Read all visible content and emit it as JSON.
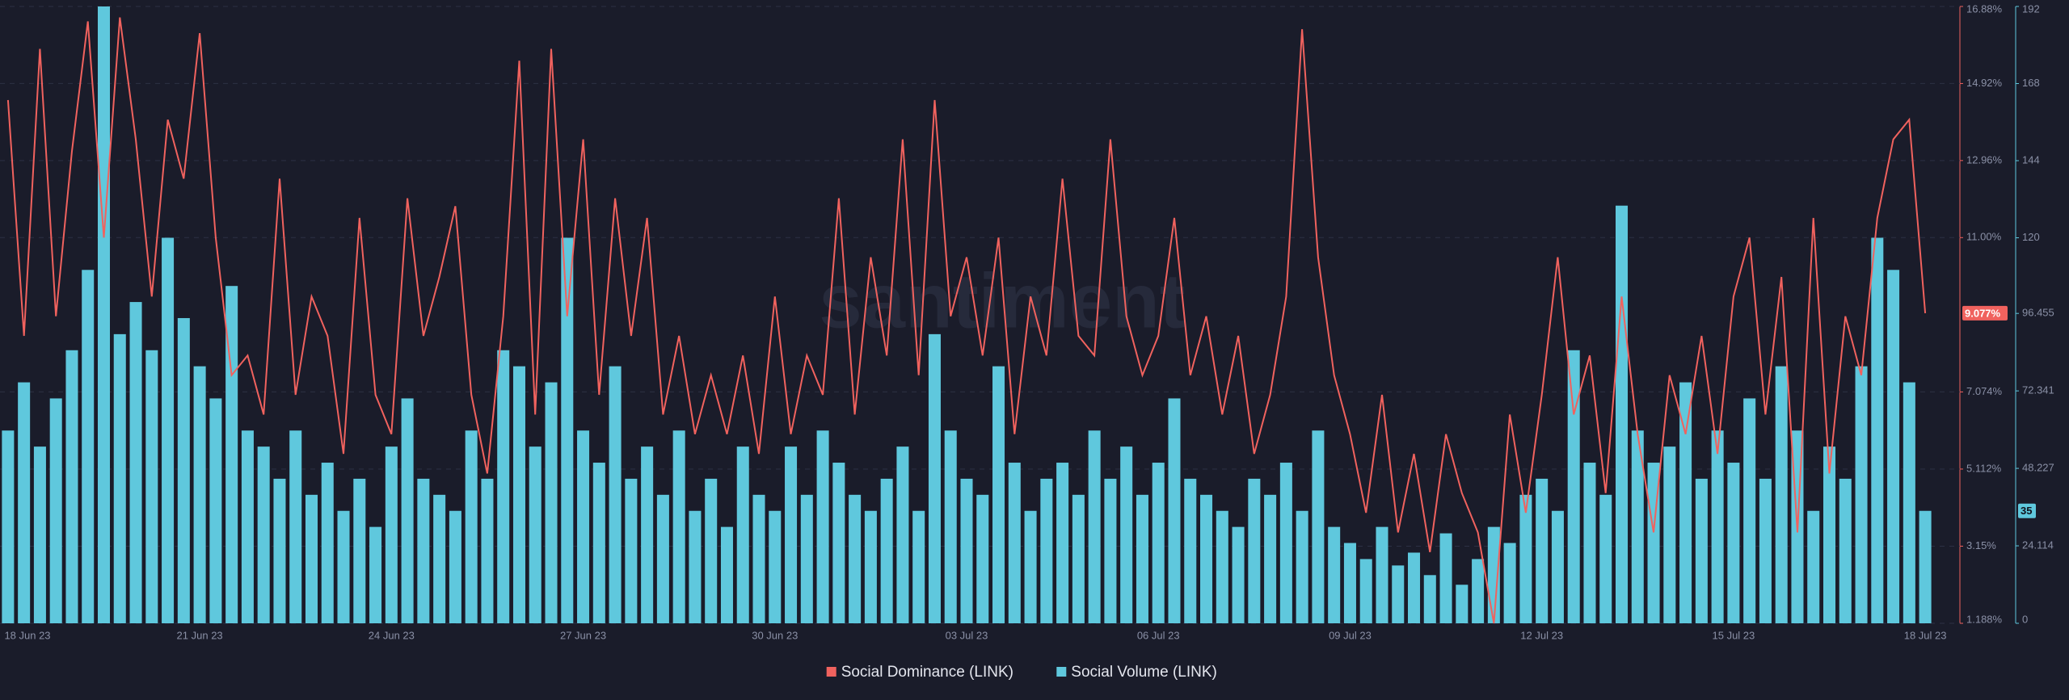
{
  "chart_data": {
    "type": "bar-line",
    "watermark": "santiment",
    "categories": [
      "18 Jun 23",
      null,
      null,
      null,
      null,
      null,
      null,
      null,
      null,
      null,
      null,
      null,
      "21 Jun 23",
      null,
      null,
      null,
      null,
      null,
      null,
      null,
      null,
      null,
      null,
      null,
      "24 Jun 23",
      null,
      null,
      null,
      null,
      null,
      null,
      null,
      null,
      null,
      null,
      null,
      "27 Jun 23",
      null,
      null,
      null,
      null,
      null,
      null,
      null,
      null,
      null,
      null,
      null,
      "30 Jun 23",
      null,
      null,
      null,
      null,
      null,
      null,
      null,
      null,
      null,
      null,
      null,
      "03 Jul 23",
      null,
      null,
      null,
      null,
      null,
      null,
      null,
      null,
      null,
      null,
      null,
      "06 Jul 23",
      null,
      null,
      null,
      null,
      null,
      null,
      null,
      null,
      null,
      null,
      null,
      "09 Jul 23",
      null,
      null,
      null,
      null,
      null,
      null,
      null,
      null,
      null,
      null,
      null,
      "12 Jul 23",
      null,
      null,
      null,
      null,
      null,
      null,
      null,
      null,
      null,
      null,
      null,
      "15 Jul 23",
      null,
      null,
      null,
      null,
      null,
      null,
      null,
      null,
      null,
      null,
      null,
      "18 Jul 23"
    ],
    "series": [
      {
        "name": "Social Dominance (LINK)",
        "color": "#f0625e",
        "kind": "line",
        "values": [
          14.5,
          8.5,
          15.8,
          9.0,
          13.2,
          16.5,
          11.0,
          16.6,
          13.5,
          9.5,
          14.0,
          12.5,
          16.2,
          11.0,
          7.5,
          8.0,
          6.5,
          12.5,
          7.0,
          9.5,
          8.5,
          5.5,
          11.5,
          7.0,
          6.0,
          12.0,
          8.5,
          10.0,
          11.8,
          7.0,
          5.0,
          9.0,
          15.5,
          6.5,
          15.8,
          9.0,
          13.5,
          7.0,
          12.0,
          8.5,
          11.5,
          6.5,
          8.5,
          6.0,
          7.5,
          6.0,
          8.0,
          5.5,
          9.5,
          6.0,
          8.0,
          7.0,
          12.0,
          6.5,
          10.5,
          8.0,
          13.5,
          7.5,
          14.5,
          9.0,
          10.5,
          8.0,
          11.0,
          6.0,
          9.5,
          8.0,
          12.5,
          8.5,
          8.0,
          13.5,
          9.0,
          7.5,
          8.5,
          11.5,
          7.5,
          9.0,
          6.5,
          8.5,
          5.5,
          7.0,
          9.5,
          16.3,
          10.5,
          7.5,
          6.0,
          4.0,
          7.0,
          3.5,
          5.5,
          3.0,
          6.0,
          4.5,
          3.5,
          1.188,
          6.5,
          4.0,
          7.0,
          10.5,
          6.5,
          8.0,
          4.5,
          9.5,
          6.0,
          3.5,
          7.5,
          6.0,
          8.5,
          5.5,
          9.5,
          11.0,
          6.5,
          10.0,
          3.5,
          11.5,
          5.0,
          9.0,
          7.5,
          11.5,
          13.5,
          14.0,
          9.077
        ],
        "value_labels": [
          null,
          null,
          null,
          null,
          null,
          null,
          null,
          null,
          null,
          null,
          null,
          null,
          null,
          null,
          null,
          null,
          null,
          null,
          null,
          null,
          null,
          null,
          null,
          null,
          null,
          null,
          null,
          null,
          null,
          null,
          null,
          null,
          null,
          null,
          null,
          null,
          null,
          null,
          null,
          null,
          null,
          null,
          null,
          null,
          null,
          null,
          null,
          null,
          null,
          null,
          null,
          null,
          null,
          null,
          null,
          null,
          null,
          null,
          null,
          null,
          null,
          null,
          null,
          null,
          null,
          null,
          null,
          null,
          null,
          null,
          null,
          null,
          null,
          null,
          null,
          null,
          null,
          null,
          null,
          null,
          null,
          null,
          null,
          null,
          null,
          null,
          null,
          null,
          null,
          null,
          null,
          null,
          null,
          null,
          null,
          null,
          null,
          null,
          null,
          null,
          null,
          null,
          null,
          null,
          null,
          null,
          null,
          null,
          null,
          null,
          null,
          null,
          null,
          null,
          null,
          null,
          null,
          null,
          null,
          null,
          "9.077%"
        ]
      },
      {
        "name": "Social Volume (LINK)",
        "color": "#5fc8dd",
        "kind": "bar",
        "axis": "y2",
        "values": [
          60,
          75,
          55,
          70,
          85,
          110,
          192,
          90,
          100,
          85,
          120,
          95,
          80,
          70,
          105,
          60,
          55,
          45,
          60,
          40,
          50,
          35,
          45,
          30,
          55,
          70,
          45,
          40,
          35,
          60,
          45,
          85,
          80,
          55,
          75,
          120,
          60,
          50,
          80,
          45,
          55,
          40,
          60,
          35,
          45,
          30,
          55,
          40,
          35,
          55,
          40,
          60,
          50,
          40,
          35,
          45,
          55,
          35,
          90,
          60,
          45,
          40,
          80,
          50,
          35,
          45,
          50,
          40,
          60,
          45,
          55,
          40,
          50,
          70,
          45,
          40,
          35,
          30,
          45,
          40,
          50,
          35,
          60,
          30,
          25,
          20,
          30,
          18,
          22,
          15,
          28,
          12,
          20,
          30,
          25,
          40,
          45,
          35,
          85,
          50,
          40,
          130,
          60,
          50,
          55,
          75,
          45,
          60,
          50,
          70,
          45,
          80,
          60,
          35,
          55,
          45,
          80,
          120,
          110,
          75,
          35
        ]
      }
    ],
    "ylim": [
      1.188,
      16.88
    ],
    "yticks": [
      {
        "value": 1.188,
        "label": "1.188%"
      },
      {
        "value": 3.15,
        "label": "3.15%"
      },
      {
        "value": 5.112,
        "label": "5.112%"
      },
      {
        "value": 7.074,
        "label": "7.074%"
      },
      {
        "value": 11.0,
        "label": "11.00%"
      },
      {
        "value": 12.96,
        "label": "12.96%"
      },
      {
        "value": 14.92,
        "label": "14.92%"
      },
      {
        "value": 16.88,
        "label": "16.88%"
      }
    ],
    "y2lim": [
      0,
      192
    ],
    "y2ticks": [
      0,
      24.114,
      48.227,
      72.341,
      96.455,
      120,
      144,
      168,
      192
    ],
    "grid": true
  }
}
